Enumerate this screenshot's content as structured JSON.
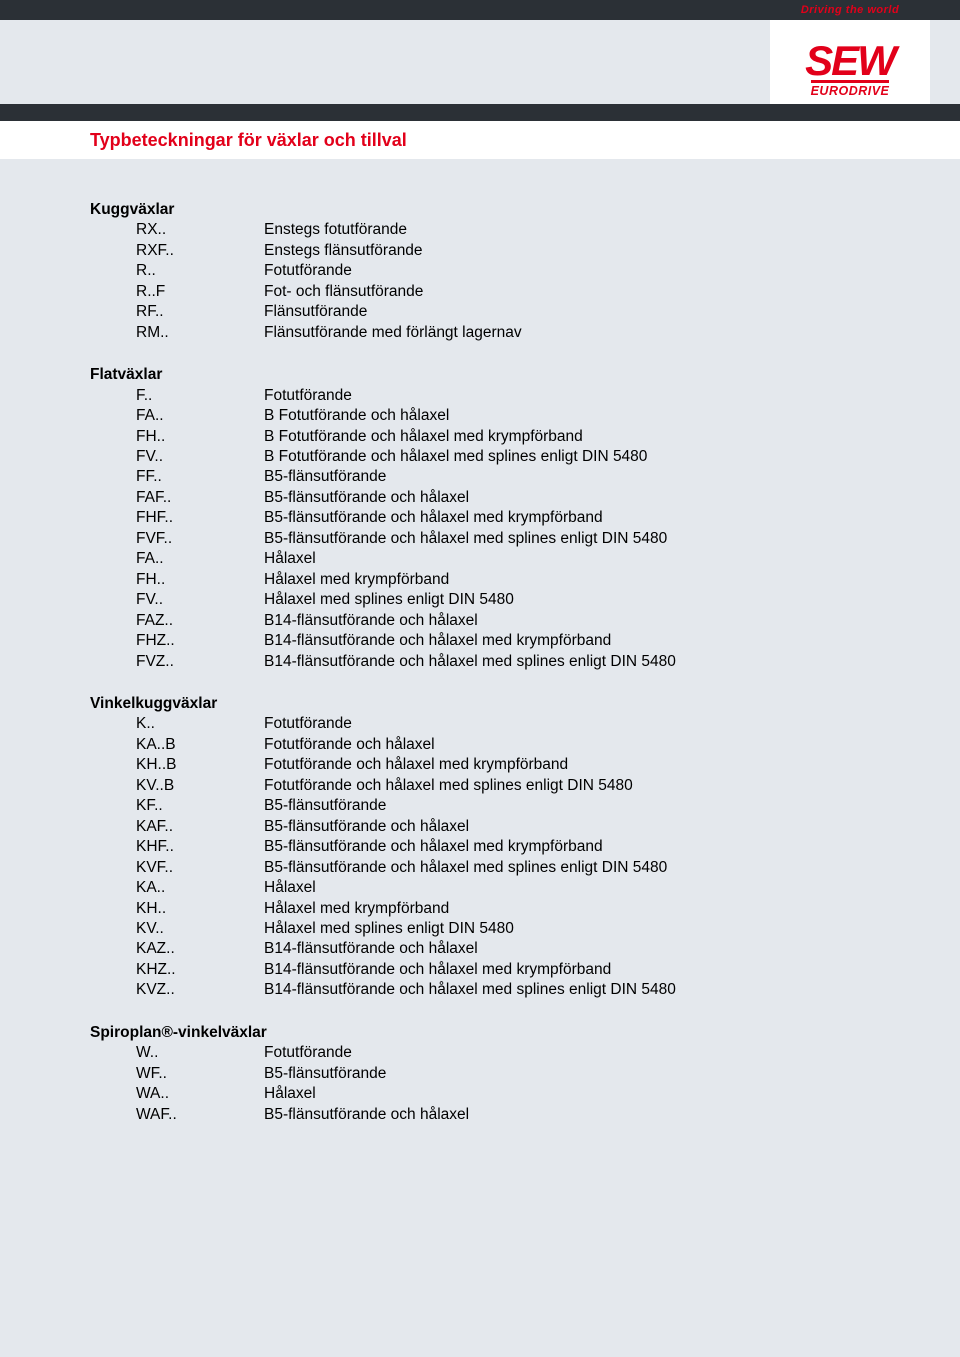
{
  "brand": {
    "tagline": "Driving the world",
    "logo_main": "SEW",
    "logo_sub": "EURODRIVE",
    "brand_color": "#e2001a",
    "header_bg": "#2b3036",
    "page_bg": "#e4e8ed"
  },
  "page_title": "Typbeteckningar för växlar och tillval",
  "sections": [
    {
      "title": "Kuggväxlar",
      "rows": [
        {
          "code": "RX..",
          "desc": "Enstegs fotutförande"
        },
        {
          "code": "RXF..",
          "desc": "Enstegs flänsutförande"
        },
        {
          "code": "R..",
          "desc": "Fotutförande"
        },
        {
          "code": "R..F",
          "desc": "Fot- och flänsutförande"
        },
        {
          "code": "RF..",
          "desc": "Flänsutförande"
        },
        {
          "code": "RM..",
          "desc": "Flänsutförande med förlängt lagernav"
        }
      ]
    },
    {
      "title": "Flatväxlar",
      "rows": [
        {
          "code": "F..",
          "desc": "Fotutförande"
        },
        {
          "code": "FA..",
          "desc": "B Fotutförande och hålaxel"
        },
        {
          "code": "FH..",
          "desc": "B Fotutförande och hålaxel med krympförband"
        },
        {
          "code": "FV..",
          "desc": "B Fotutförande och hålaxel med splines enligt DIN 5480"
        },
        {
          "code": "FF..",
          "desc": "B5-flänsutförande"
        },
        {
          "code": "FAF..",
          "desc": "B5-flänsutförande och hålaxel"
        },
        {
          "code": "FHF..",
          "desc": "B5-flänsutförande och hålaxel med krympförband"
        },
        {
          "code": "FVF..",
          "desc": "B5-flänsutförande och hålaxel med splines enligt DIN 5480"
        },
        {
          "code": "FA..",
          "desc": "Hålaxel"
        },
        {
          "code": "FH..",
          "desc": "Hålaxel med krympförband"
        },
        {
          "code": "FV..",
          "desc": "Hålaxel med splines enligt DIN 5480"
        },
        {
          "code": "FAZ..",
          "desc": "B14-flänsutförande och hålaxel"
        },
        {
          "code": "FHZ..",
          "desc": "B14-flänsutförande och hålaxel med krympförband"
        },
        {
          "code": "FVZ..",
          "desc": "B14-flänsutförande och hålaxel med splines enligt DIN 5480"
        }
      ]
    },
    {
      "title": "Vinkelkuggväxlar",
      "rows": [
        {
          "code": "K..",
          "desc": "Fotutförande"
        },
        {
          "code": "KA..B",
          "desc": "Fotutförande och hålaxel"
        },
        {
          "code": "KH..B",
          "desc": "Fotutförande och hålaxel med krympförband"
        },
        {
          "code": "KV..B",
          "desc": "Fotutförande och hålaxel med splines enligt DIN 5480"
        },
        {
          "code": "KF..",
          "desc": "B5-flänsutförande"
        },
        {
          "code": "KAF..",
          "desc": "B5-flänsutförande och hålaxel"
        },
        {
          "code": "KHF..",
          "desc": "B5-flänsutförande och hålaxel med krympförband"
        },
        {
          "code": "KVF..",
          "desc": "B5-flänsutförande och hålaxel med splines enligt DIN 5480"
        },
        {
          "code": "KA..",
          "desc": "Hålaxel"
        },
        {
          "code": "KH..",
          "desc": "Hålaxel med krympförband"
        },
        {
          "code": "KV..",
          "desc": "Hålaxel med splines enligt DIN 5480"
        },
        {
          "code": "KAZ..",
          "desc": "B14-flänsutförande och hålaxel"
        },
        {
          "code": "KHZ..",
          "desc": "B14-flänsutförande och hålaxel med krympförband"
        },
        {
          "code": "KVZ..",
          "desc": "B14-flänsutförande och hålaxel med splines enligt DIN 5480"
        }
      ]
    },
    {
      "title": "Spiroplan®-vinkelväxlar",
      "rows": [
        {
          "code": "W..",
          "desc": "Fotutförande"
        },
        {
          "code": "WF..",
          "desc": "B5-flänsutförande"
        },
        {
          "code": "WA..",
          "desc": "Hålaxel"
        },
        {
          "code": "WAF..",
          "desc": "B5-flänsutförande och hålaxel"
        }
      ]
    }
  ]
}
